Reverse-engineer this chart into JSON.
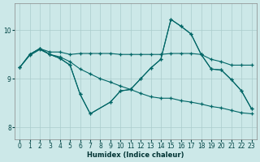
{
  "xlabel": "Humidex (Indice chaleur)",
  "bg_color": "#cce8e8",
  "grid_color": "#aacccc",
  "line_color": "#006666",
  "xlim": [
    -0.5,
    23.5
  ],
  "ylim": [
    7.75,
    10.55
  ],
  "xticks": [
    0,
    1,
    2,
    3,
    4,
    5,
    6,
    7,
    8,
    9,
    10,
    11,
    12,
    13,
    14,
    15,
    16,
    17,
    18,
    19,
    20,
    21,
    22,
    23
  ],
  "yticks": [
    8,
    9,
    10
  ],
  "series": [
    {
      "x": [
        0,
        1,
        2,
        3,
        4,
        5,
        6,
        7,
        8,
        9,
        10,
        11,
        12,
        13,
        14,
        15,
        16,
        17,
        18,
        19,
        20,
        21,
        22,
        23
      ],
      "y": [
        9.23,
        9.5,
        9.62,
        9.55,
        9.55,
        9.5,
        9.52,
        9.52,
        9.52,
        9.52,
        9.5,
        9.5,
        9.5,
        9.5,
        9.5,
        9.52,
        9.52,
        9.52,
        9.5,
        9.4,
        9.35,
        9.28,
        9.28,
        9.28
      ]
    },
    {
      "x": [
        0,
        1,
        2,
        3,
        4,
        5,
        6,
        7,
        9,
        10,
        11,
        12,
        13,
        14,
        15,
        16,
        17,
        18,
        19,
        20,
        21,
        22,
        23
      ],
      "y": [
        9.23,
        9.5,
        9.62,
        9.5,
        9.42,
        9.28,
        8.68,
        8.28,
        8.52,
        8.75,
        8.78,
        9.0,
        9.22,
        9.4,
        10.22,
        10.08,
        9.92,
        9.5,
        9.2,
        9.18,
        8.98,
        8.75,
        8.38
      ]
    },
    {
      "x": [
        1,
        2,
        3,
        4,
        5,
        6,
        7,
        9,
        10,
        11,
        12,
        13,
        14,
        15,
        16,
        17,
        18,
        19,
        20,
        21,
        22,
        23
      ],
      "y": [
        9.5,
        9.62,
        9.5,
        9.42,
        9.28,
        8.68,
        8.28,
        8.52,
        8.75,
        8.78,
        9.0,
        9.22,
        9.4,
        10.22,
        10.08,
        9.92,
        9.5,
        9.2,
        9.18,
        8.98,
        8.75,
        8.38
      ]
    },
    {
      "x": [
        0,
        1,
        2,
        3,
        4,
        5,
        6,
        7,
        8,
        9,
        10,
        11,
        12,
        13,
        14,
        15,
        16,
        17,
        18,
        19,
        20,
        21,
        22,
        23
      ],
      "y": [
        9.23,
        9.48,
        9.6,
        9.5,
        9.45,
        9.35,
        9.2,
        9.1,
        9.0,
        8.93,
        8.85,
        8.78,
        8.7,
        8.63,
        8.6,
        8.6,
        8.55,
        8.52,
        8.48,
        8.43,
        8.4,
        8.35,
        8.3,
        8.28
      ]
    }
  ]
}
